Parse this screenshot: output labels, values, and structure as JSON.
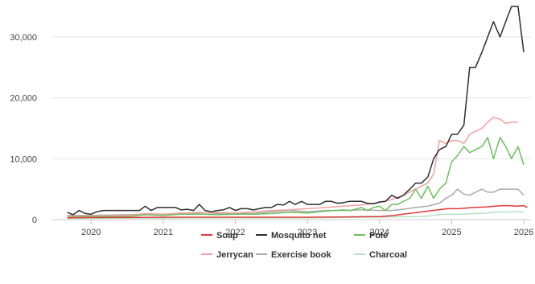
{
  "chart_data": {
    "type": "line",
    "title": "",
    "xlabel": "",
    "ylabel": "",
    "xlim": [
      2019.45,
      2026.1
    ],
    "ylim": [
      0,
      35000
    ],
    "grid": "horizontal",
    "legend_position": "bottom",
    "y_ticks": [
      {
        "value": 0,
        "label": "0"
      },
      {
        "value": 10000,
        "label": "10,000"
      },
      {
        "value": 20000,
        "label": "20,000"
      },
      {
        "value": 30000,
        "label": "30,000"
      }
    ],
    "x_ticks": [
      {
        "value": 2020,
        "label": "2020"
      },
      {
        "value": 2021,
        "label": "2021"
      },
      {
        "value": 2022,
        "label": "2022"
      },
      {
        "value": 2023,
        "label": "2023"
      },
      {
        "value": 2024,
        "label": "2024"
      },
      {
        "value": 2025,
        "label": "2025"
      },
      {
        "value": 2026,
        "label": "2026"
      }
    ],
    "series": [
      {
        "name": "Soap",
        "color": "#e03a3a",
        "points": [
          [
            2019.67,
            300
          ],
          [
            2020.0,
            350
          ],
          [
            2020.5,
            350
          ],
          [
            2021.0,
            400
          ],
          [
            2021.5,
            400
          ],
          [
            2022.0,
            400
          ],
          [
            2022.5,
            400
          ],
          [
            2023.0,
            400
          ],
          [
            2023.5,
            450
          ],
          [
            2023.9,
            500
          ],
          [
            2024.0,
            500
          ],
          [
            2024.2,
            700
          ],
          [
            2024.4,
            1000
          ],
          [
            2024.6,
            1300
          ],
          [
            2024.8,
            1600
          ],
          [
            2024.95,
            1800
          ],
          [
            2025.1,
            1800
          ],
          [
            2025.3,
            2000
          ],
          [
            2025.5,
            2100
          ],
          [
            2025.6,
            2200
          ],
          [
            2025.7,
            2300
          ],
          [
            2025.8,
            2300
          ],
          [
            2025.9,
            2200
          ],
          [
            2026.0,
            2300
          ],
          [
            2026.05,
            2000
          ]
        ]
      },
      {
        "name": "Mosquito net",
        "color": "#2e2e2e",
        "points": [
          [
            2019.67,
            1200
          ],
          [
            2019.75,
            800
          ],
          [
            2019.83,
            1500
          ],
          [
            2019.92,
            1000
          ],
          [
            2020.0,
            900
          ],
          [
            2020.08,
            1300
          ],
          [
            2020.17,
            1500
          ],
          [
            2020.5,
            1500
          ],
          [
            2020.67,
            1500
          ],
          [
            2020.75,
            2200
          ],
          [
            2020.83,
            1500
          ],
          [
            2020.92,
            2000
          ],
          [
            2021.0,
            2000
          ],
          [
            2021.17,
            2000
          ],
          [
            2021.25,
            1600
          ],
          [
            2021.33,
            1700
          ],
          [
            2021.42,
            1500
          ],
          [
            2021.5,
            2500
          ],
          [
            2021.58,
            1500
          ],
          [
            2021.67,
            1300
          ],
          [
            2021.75,
            1500
          ],
          [
            2021.83,
            1600
          ],
          [
            2021.92,
            2000
          ],
          [
            2022.0,
            1500
          ],
          [
            2022.08,
            1800
          ],
          [
            2022.17,
            1800
          ],
          [
            2022.25,
            1600
          ],
          [
            2022.33,
            1800
          ],
          [
            2022.42,
            2000
          ],
          [
            2022.5,
            2000
          ],
          [
            2022.58,
            2500
          ],
          [
            2022.67,
            2400
          ],
          [
            2022.75,
            3000
          ],
          [
            2022.83,
            2500
          ],
          [
            2022.92,
            3000
          ],
          [
            2023.0,
            2500
          ],
          [
            2023.08,
            2500
          ],
          [
            2023.17,
            2500
          ],
          [
            2023.25,
            3000
          ],
          [
            2023.33,
            3000
          ],
          [
            2023.42,
            2700
          ],
          [
            2023.5,
            2800
          ],
          [
            2023.58,
            3000
          ],
          [
            2023.67,
            3000
          ],
          [
            2023.75,
            3000
          ],
          [
            2023.83,
            2700
          ],
          [
            2023.92,
            2600
          ],
          [
            2024.0,
            2900
          ],
          [
            2024.08,
            3000
          ],
          [
            2024.17,
            4000
          ],
          [
            2024.25,
            3500
          ],
          [
            2024.33,
            4000
          ],
          [
            2024.42,
            5000
          ],
          [
            2024.5,
            6000
          ],
          [
            2024.58,
            6000
          ],
          [
            2024.67,
            7000
          ],
          [
            2024.75,
            10000
          ],
          [
            2024.83,
            11500
          ],
          [
            2024.92,
            12000
          ],
          [
            2025.0,
            14000
          ],
          [
            2025.08,
            14000
          ],
          [
            2025.17,
            15500
          ],
          [
            2025.25,
            25000
          ],
          [
            2025.33,
            25000
          ],
          [
            2025.42,
            27500
          ],
          [
            2025.5,
            30000
          ],
          [
            2025.58,
            32500
          ],
          [
            2025.67,
            30000
          ],
          [
            2025.75,
            32500
          ],
          [
            2025.83,
            35000
          ],
          [
            2025.92,
            35000
          ],
          [
            2026.0,
            27500
          ]
        ]
      },
      {
        "name": "Pole",
        "color": "#6cbf5e",
        "points": [
          [
            2019.67,
            400
          ],
          [
            2020.0,
            500
          ],
          [
            2020.5,
            500
          ],
          [
            2020.75,
            800
          ],
          [
            2021.0,
            700
          ],
          [
            2021.25,
            900
          ],
          [
            2021.5,
            900
          ],
          [
            2021.75,
            800
          ],
          [
            2022.0,
            900
          ],
          [
            2022.25,
            900
          ],
          [
            2022.5,
            1000
          ],
          [
            2022.75,
            1200
          ],
          [
            2023.0,
            1100
          ],
          [
            2023.25,
            1400
          ],
          [
            2023.5,
            1600
          ],
          [
            2023.6,
            1500
          ],
          [
            2023.75,
            2000
          ],
          [
            2023.83,
            1500
          ],
          [
            2023.92,
            2000
          ],
          [
            2024.0,
            2200
          ],
          [
            2024.08,
            1500
          ],
          [
            2024.17,
            2500
          ],
          [
            2024.25,
            2500
          ],
          [
            2024.33,
            3000
          ],
          [
            2024.42,
            3500
          ],
          [
            2024.5,
            5000
          ],
          [
            2024.58,
            3500
          ],
          [
            2024.67,
            5500
          ],
          [
            2024.75,
            3500
          ],
          [
            2024.83,
            5000
          ],
          [
            2024.92,
            6000
          ],
          [
            2025.0,
            9500
          ],
          [
            2025.08,
            10500
          ],
          [
            2025.17,
            12000
          ],
          [
            2025.25,
            11000
          ],
          [
            2025.33,
            11500
          ],
          [
            2025.42,
            12000
          ],
          [
            2025.5,
            13500
          ],
          [
            2025.58,
            10000
          ],
          [
            2025.67,
            13500
          ],
          [
            2025.75,
            12000
          ],
          [
            2025.83,
            10000
          ],
          [
            2025.92,
            12000
          ],
          [
            2026.0,
            9000
          ]
        ]
      },
      {
        "name": "Jerrycan",
        "color": "#f4a0a0",
        "points": [
          [
            2019.67,
            600
          ],
          [
            2020.0,
            600
          ],
          [
            2020.5,
            700
          ],
          [
            2020.75,
            1000
          ],
          [
            2021.0,
            900
          ],
          [
            2021.25,
            1100
          ],
          [
            2021.5,
            1100
          ],
          [
            2021.75,
            1200
          ],
          [
            2022.0,
            1100
          ],
          [
            2022.25,
            1300
          ],
          [
            2022.5,
            1500
          ],
          [
            2022.75,
            1600
          ],
          [
            2023.0,
            1800
          ],
          [
            2023.25,
            2000
          ],
          [
            2023.5,
            2200
          ],
          [
            2023.75,
            2400
          ],
          [
            2024.0,
            2800
          ],
          [
            2024.17,
            3300
          ],
          [
            2024.33,
            4000
          ],
          [
            2024.5,
            5000
          ],
          [
            2024.67,
            6000
          ],
          [
            2024.75,
            7500
          ],
          [
            2024.83,
            13000
          ],
          [
            2024.92,
            12500
          ],
          [
            2025.0,
            13000
          ],
          [
            2025.08,
            13000
          ],
          [
            2025.17,
            12500
          ],
          [
            2025.25,
            14000
          ],
          [
            2025.33,
            14500
          ],
          [
            2025.42,
            15000
          ],
          [
            2025.5,
            16000
          ],
          [
            2025.58,
            16800
          ],
          [
            2025.67,
            16500
          ],
          [
            2025.75,
            15800
          ],
          [
            2025.83,
            16000
          ],
          [
            2025.92,
            16000
          ]
        ]
      },
      {
        "name": "Exercise book",
        "color": "#aaaaaa",
        "points": [
          [
            2019.67,
            700
          ],
          [
            2020.0,
            700
          ],
          [
            2020.5,
            800
          ],
          [
            2020.75,
            900
          ],
          [
            2021.0,
            900
          ],
          [
            2021.25,
            1000
          ],
          [
            2021.5,
            1200
          ],
          [
            2021.75,
            1000
          ],
          [
            2022.0,
            1000
          ],
          [
            2022.25,
            1000
          ],
          [
            2022.5,
            1300
          ],
          [
            2022.75,
            1500
          ],
          [
            2023.0,
            1300
          ],
          [
            2023.25,
            1500
          ],
          [
            2023.5,
            1500
          ],
          [
            2023.75,
            1600
          ],
          [
            2024.0,
            1500
          ],
          [
            2024.17,
            1500
          ],
          [
            2024.33,
            1700
          ],
          [
            2024.5,
            2000
          ],
          [
            2024.67,
            2200
          ],
          [
            2024.83,
            2700
          ],
          [
            2024.92,
            3500
          ],
          [
            2025.0,
            4000
          ],
          [
            2025.08,
            5000
          ],
          [
            2025.17,
            4200
          ],
          [
            2025.25,
            4000
          ],
          [
            2025.33,
            4500
          ],
          [
            2025.42,
            5000
          ],
          [
            2025.5,
            4500
          ],
          [
            2025.58,
            4500
          ],
          [
            2025.67,
            5000
          ],
          [
            2025.75,
            5000
          ],
          [
            2025.83,
            5000
          ],
          [
            2025.92,
            5000
          ],
          [
            2026.0,
            4000
          ]
        ]
      },
      {
        "name": "Charcoal",
        "color": "#b6e0c4",
        "points": [
          [
            2019.67,
            200
          ],
          [
            2020.0,
            200
          ],
          [
            2020.5,
            250
          ],
          [
            2021.0,
            250
          ],
          [
            2021.5,
            300
          ],
          [
            2022.0,
            300
          ],
          [
            2022.5,
            300
          ],
          [
            2023.0,
            300
          ],
          [
            2023.5,
            350
          ],
          [
            2024.0,
            400
          ],
          [
            2024.25,
            450
          ],
          [
            2024.5,
            500
          ],
          [
            2024.67,
            600
          ],
          [
            2024.75,
            700
          ],
          [
            2024.83,
            800
          ],
          [
            2024.92,
            900
          ],
          [
            2025.0,
            900
          ],
          [
            2025.17,
            900
          ],
          [
            2025.33,
            1000
          ],
          [
            2025.5,
            1100
          ],
          [
            2025.58,
            1200
          ],
          [
            2025.67,
            1300
          ],
          [
            2025.75,
            1200
          ],
          [
            2025.83,
            1300
          ],
          [
            2025.92,
            1300
          ],
          [
            2026.0,
            1200
          ]
        ]
      }
    ]
  }
}
